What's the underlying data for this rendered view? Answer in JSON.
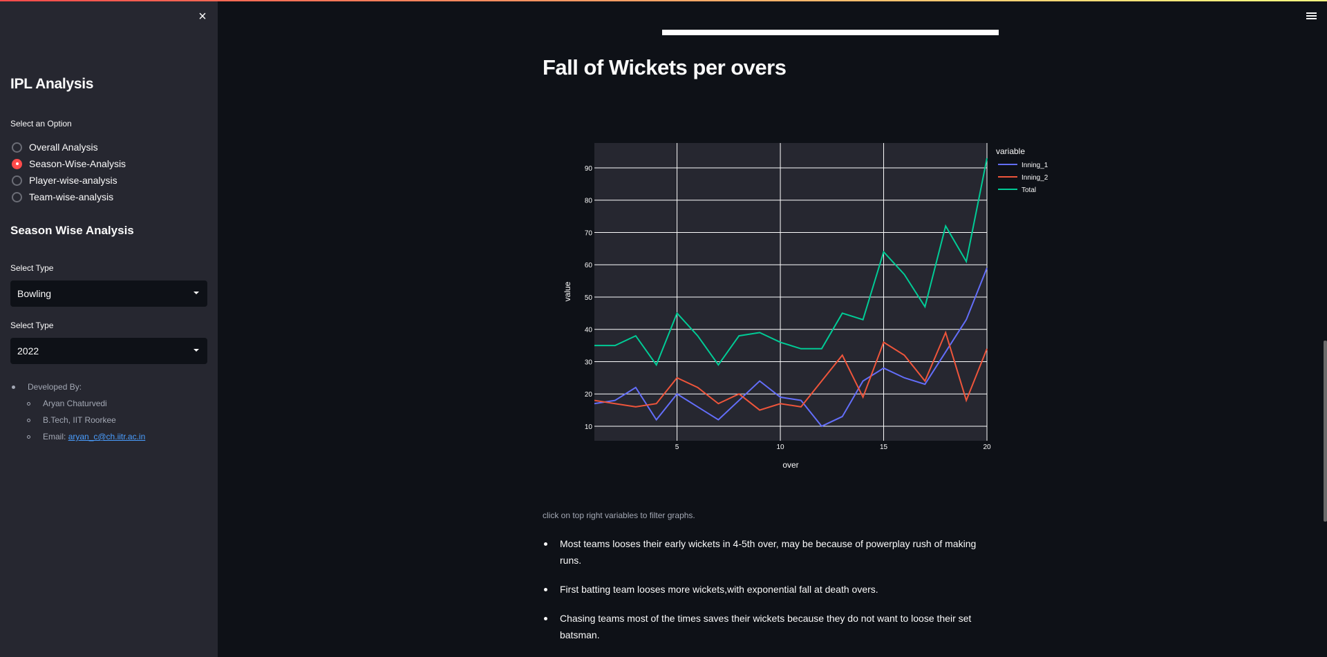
{
  "sidebar": {
    "close_icon": "×",
    "title": "IPL Analysis",
    "option_label": "Select an Option",
    "options": [
      {
        "label": "Overall Analysis",
        "checked": false
      },
      {
        "label": "Season-Wise-Analysis",
        "checked": true
      },
      {
        "label": "Player-wise-analysis",
        "checked": false
      },
      {
        "label": "Team-wise-analysis",
        "checked": false
      }
    ],
    "section_title": "Season Wise Analysis",
    "select1": {
      "label": "Select Type",
      "value": "Bowling"
    },
    "select2": {
      "label": "Select Type",
      "value": "2022"
    },
    "developer": {
      "heading": "Developed By:",
      "name": "Aryan Chaturvedi",
      "degree": "B.Tech, IIT Roorkee",
      "email_label": "Email: ",
      "email": "aryan_c@ch.iitr.ac.in"
    }
  },
  "main": {
    "title": "Fall of Wickets per overs",
    "caption": "click on top right variables to filter graphs.",
    "notes": [
      "Most teams looses their early wickets in 4-5th over, may be because of powerplay rush of making runs.",
      "First batting team looses more wickets,with exponential fall at death overs.",
      "Chasing teams most of the times saves their wickets because they do not want to loose their set batsman."
    ]
  },
  "colors": {
    "accent": "#ff4b4b",
    "inning_1": "#636efa",
    "inning_2": "#ef553b",
    "total": "#00cc96",
    "plot_bg": "#262730",
    "page_bg": "#0e1117",
    "sidebar_bg": "#262730"
  },
  "chart_data": {
    "type": "line",
    "title": "Fall of Wickets per overs",
    "xlabel": "over",
    "ylabel": "value",
    "legend_title": "variable",
    "legend_position": "top-right-outside",
    "grid": true,
    "xlim": [
      1,
      20
    ],
    "ylim": [
      5.5,
      97.7
    ],
    "xticks": [
      5,
      10,
      15,
      20
    ],
    "yticks": [
      10,
      20,
      30,
      40,
      50,
      60,
      70,
      80,
      90
    ],
    "x": [
      1,
      2,
      3,
      4,
      5,
      6,
      7,
      8,
      9,
      10,
      11,
      12,
      13,
      14,
      15,
      16,
      17,
      18,
      19,
      20
    ],
    "series": [
      {
        "name": "Inning_1",
        "color": "#636efa",
        "values": [
          17,
          18,
          22,
          12,
          20,
          16,
          12,
          18,
          24,
          19,
          18,
          10,
          13,
          24,
          28,
          25,
          23,
          33,
          43,
          59
        ]
      },
      {
        "name": "Inning_2",
        "color": "#ef553b",
        "values": [
          18,
          17,
          16,
          17,
          25,
          22,
          17,
          20,
          15,
          17,
          16,
          24,
          32,
          19,
          36,
          32,
          24,
          39,
          18,
          34
        ]
      },
      {
        "name": "Total",
        "color": "#00cc96",
        "values": [
          35,
          35,
          38,
          29,
          45,
          38,
          29,
          38,
          39,
          36,
          34,
          34,
          45,
          43,
          64,
          57,
          47,
          72,
          61,
          93
        ]
      }
    ]
  }
}
